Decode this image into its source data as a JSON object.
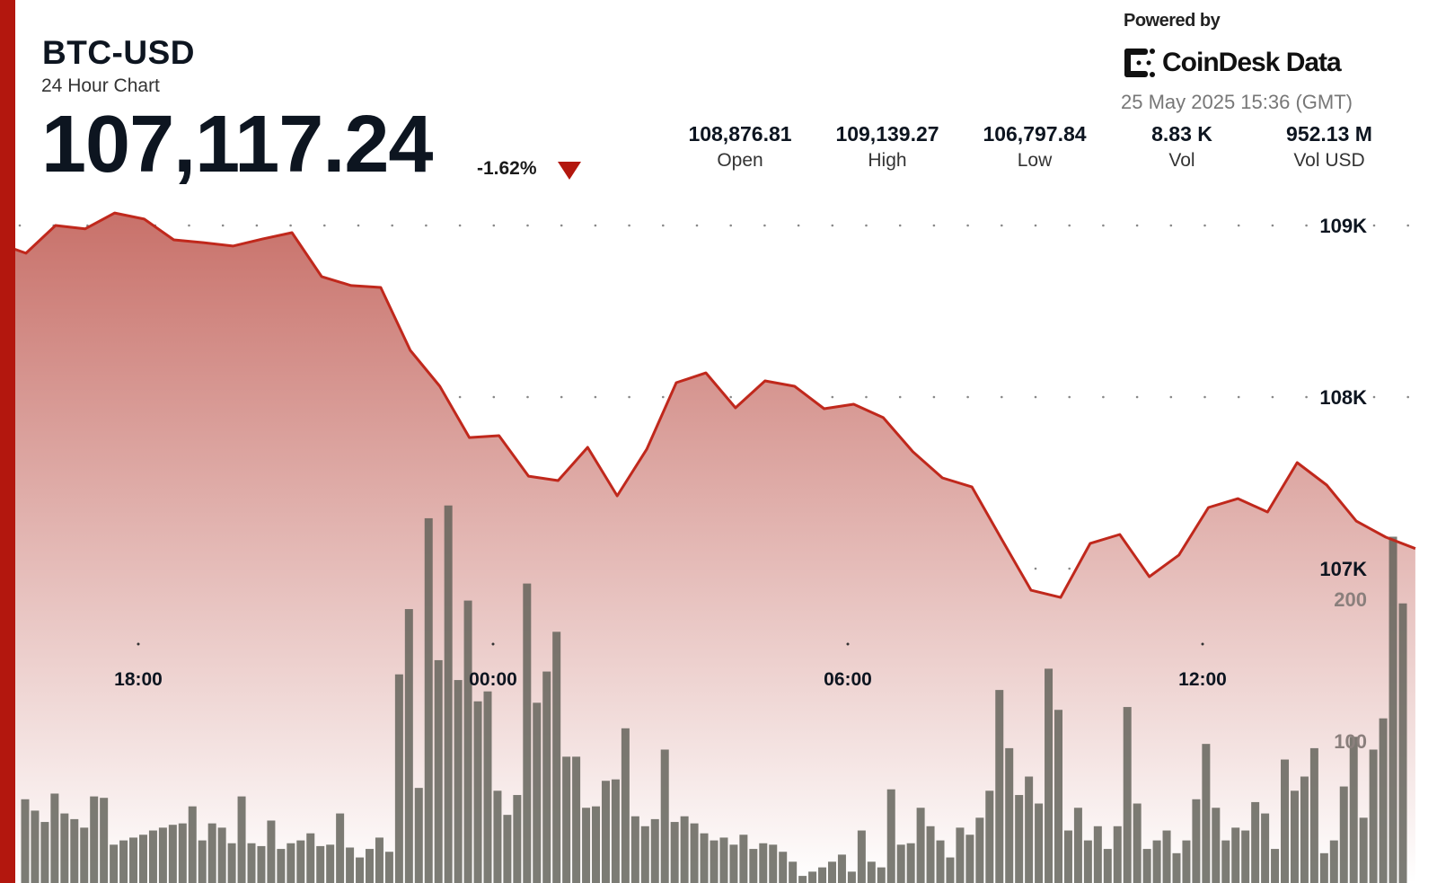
{
  "header": {
    "symbol": "BTC-USD",
    "subtitle": "24 Hour Chart",
    "price": "107,117.24",
    "change_pct": "-1.62%",
    "direction_icon": "triangle-down-icon",
    "stats": [
      {
        "value": "108,876.81",
        "label": "Open"
      },
      {
        "value": "109,139.27",
        "label": "High"
      },
      {
        "value": "106,797.84",
        "label": "Low"
      },
      {
        "value": "8.83 K",
        "label": "Vol"
      },
      {
        "value": "952.13 M",
        "label": "Vol USD"
      }
    ]
  },
  "branding": {
    "powered_by": "Powered by",
    "logo_text": "CoinDesk Data",
    "timestamp": "25 May 2025 15:36 (GMT)"
  },
  "colors": {
    "accent": "#b3170e",
    "line": "#c0281c",
    "area_top": "#c8716a",
    "volume_bar": "#5f5f57"
  },
  "chart_data": {
    "type": "line",
    "x_ticks": [
      "18:00",
      "00:00",
      "06:00",
      "12:00"
    ],
    "x_range": [
      "15:36",
      "15:36"
    ],
    "x_interval_minutes": 30,
    "price_ticks": [
      {
        "value": 109000,
        "label": "109K"
      },
      {
        "value": 108000,
        "label": "108K"
      },
      {
        "value": 107000,
        "label": "107K"
      }
    ],
    "volume_ticks": [
      {
        "value": 200,
        "label": "200"
      },
      {
        "value": 100,
        "label": "100"
      }
    ],
    "grid": true,
    "price_series": [
      108900,
      108838,
      109000,
      108980,
      109073,
      109037,
      108916,
      108900,
      108880,
      108921,
      108958,
      108702,
      108650,
      108639,
      108272,
      108063,
      107764,
      107775,
      107539,
      107513,
      107707,
      107424,
      107696,
      108084,
      108141,
      107937,
      108094,
      108063,
      107932,
      107958,
      107880,
      107681,
      107529,
      107476,
      107173,
      106874,
      106832,
      107147,
      107199,
      106953,
      107079,
      107356,
      107408,
      107330,
      107618,
      107487,
      107277,
      107183,
      107117
    ],
    "volume_series": [
      59,
      51,
      43,
      63,
      49,
      45,
      39,
      61,
      60,
      27,
      30,
      32,
      34,
      37,
      39,
      41,
      42,
      54,
      30,
      42,
      39,
      28,
      61,
      28,
      26,
      44,
      24,
      28,
      30,
      35,
      26,
      27,
      49,
      25,
      18,
      24,
      32,
      22,
      147,
      193,
      67,
      257,
      157,
      266,
      143,
      199,
      128,
      135,
      65,
      48,
      62,
      211,
      127,
      149,
      177,
      89,
      89,
      53,
      54,
      72,
      73,
      109,
      47,
      40,
      45,
      94,
      43,
      47,
      42,
      35,
      30,
      32,
      27,
      34,
      24,
      28,
      27,
      22,
      15,
      5,
      8,
      11,
      15,
      20,
      8,
      37,
      15,
      11,
      66,
      27,
      28,
      53,
      40,
      30,
      18,
      39,
      34,
      46,
      65,
      136,
      95,
      62,
      75,
      56,
      151,
      122,
      37,
      53,
      30,
      40,
      24,
      40,
      124,
      56,
      24,
      30,
      37,
      21,
      30,
      59,
      98,
      53,
      30,
      39,
      37,
      57,
      49,
      24,
      87,
      65,
      75,
      95,
      21,
      30,
      68,
      103,
      46,
      94,
      116,
      244,
      197
    ]
  }
}
